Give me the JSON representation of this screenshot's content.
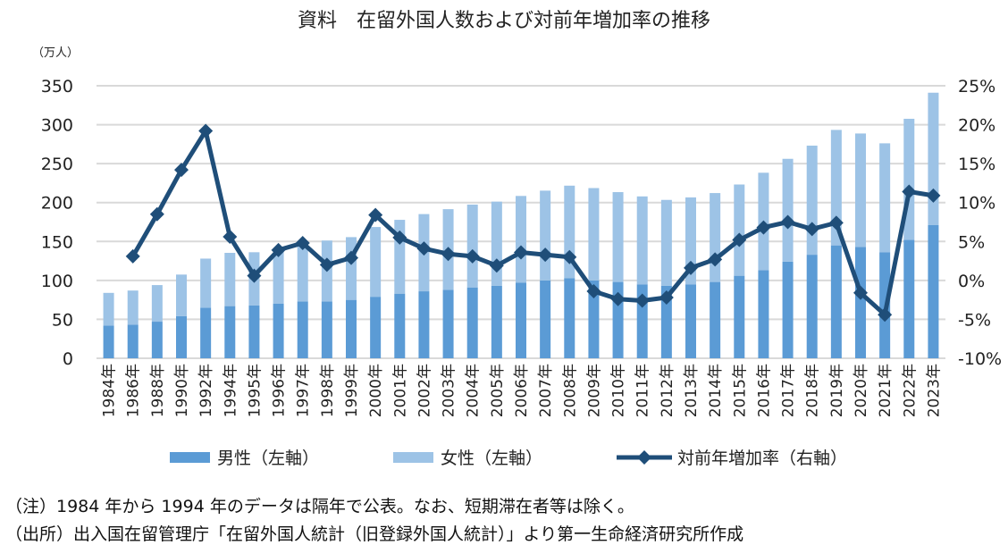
{
  "chart_data": {
    "type": "bar+line",
    "title": "資料　在留外国人数および対前年増加率の推移",
    "left_unit": "（万人）",
    "categories": [
      "1984年",
      "1986年",
      "1988年",
      "1990年",
      "1992年",
      "1994年",
      "1995年",
      "1996年",
      "1997年",
      "1998年",
      "1999年",
      "2000年",
      "2001年",
      "2002年",
      "2003年",
      "2004年",
      "2005年",
      "2006年",
      "2007年",
      "2008年",
      "2009年",
      "2010年",
      "2011年",
      "2012年",
      "2013年",
      "2014年",
      "2015年",
      "2016年",
      "2017年",
      "2018年",
      "2019年",
      "2020年",
      "2021年",
      "2022年",
      "2023年"
    ],
    "series": [
      {
        "name": "男性（左軸）",
        "type": "bar",
        "axis": "left",
        "color": "#5b9bd5",
        "values": [
          42,
          43,
          47,
          54,
          65,
          67,
          68,
          70,
          73,
          73,
          75,
          79,
          83,
          86,
          88,
          91,
          93,
          97,
          100,
          103,
          100,
          98,
          95,
          93,
          95,
          98,
          106,
          113,
          124,
          133,
          145,
          143,
          136,
          152,
          171
        ]
      },
      {
        "name": "女性（左軸）",
        "type": "bar",
        "axis": "left",
        "color": "#9dc3e6",
        "values": [
          42,
          44,
          47,
          53.5,
          63,
          68.4,
          68.2,
          71.5,
          75.3,
          78.2,
          80.6,
          89.6,
          94.8,
          99.2,
          103.5,
          106.4,
          108.2,
          111.5,
          115.3,
          118.7,
          118.6,
          115.4,
          112.9,
          110.4,
          111.6,
          114.2,
          117.2,
          125.3,
          132.2,
          140.1,
          148.3,
          145.7,
          140.1,
          155.6,
          170.1
        ]
      },
      {
        "name": "対前年増加率（右軸）",
        "type": "line",
        "axis": "right",
        "color": "#1f4e79",
        "values": [
          null,
          3.1,
          8.5,
          14.2,
          19.2,
          5.6,
          0.6,
          3.9,
          4.8,
          2.0,
          2.9,
          8.4,
          5.5,
          4.1,
          3.4,
          3.1,
          1.9,
          3.6,
          3.3,
          3.0,
          -1.4,
          -2.4,
          -2.6,
          -2.2,
          1.6,
          2.7,
          5.2,
          6.8,
          7.5,
          6.6,
          7.4,
          -1.6,
          -4.4,
          11.4,
          10.9
        ]
      }
    ],
    "left_axis": {
      "ylim": [
        0,
        350
      ],
      "ticks": [
        "0",
        "50",
        "100",
        "150",
        "200",
        "250",
        "300",
        "350"
      ]
    },
    "right_axis": {
      "ylim": [
        -10,
        25
      ],
      "ticks": [
        "-10%",
        "-5%",
        "0%",
        "5%",
        "10%",
        "15%",
        "20%",
        "25%"
      ]
    },
    "grid": true,
    "legend": "bottom"
  },
  "notes": [
    "（注）1984 年から 1994 年のデータは隔年で公表。なお、短期滞在者等は除く。",
    "（出所）出入国在留管理庁「在留外国人統計（旧登録外国人統計）」より第一生命経済研究所作成"
  ]
}
